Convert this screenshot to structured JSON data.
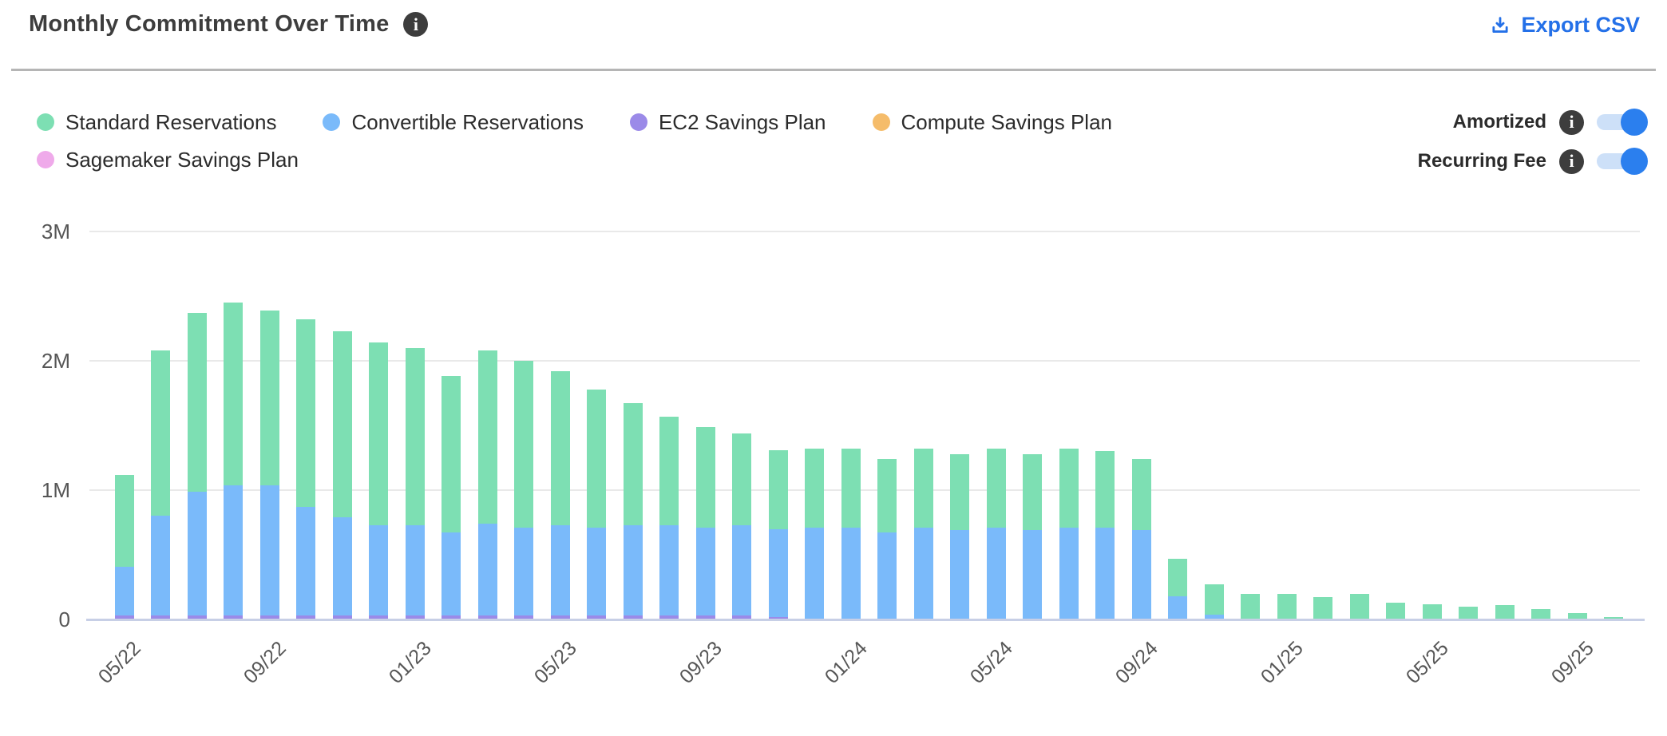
{
  "header": {
    "title": "Monthly Commitment Over Time",
    "export_label": "Export CSV"
  },
  "legend": {
    "items": [
      {
        "label": "Standard Reservations",
        "color": "#7ddfb3"
      },
      {
        "label": "Convertible Reservations",
        "color": "#7abafa"
      },
      {
        "label": "EC2 Savings Plan",
        "color": "#9b8ae8"
      },
      {
        "label": "Compute Savings Plan",
        "color": "#f5bc6a"
      },
      {
        "label": "Sagemaker Savings Plan",
        "color": "#efaaea"
      }
    ]
  },
  "toggles": [
    {
      "label": "Amortized",
      "state": "on"
    },
    {
      "label": "Recurring Fee",
      "state": "on"
    }
  ],
  "colors": {
    "accent_blue": "#2470e8",
    "toggle_knob": "#2b7fee",
    "toggle_track": "#cde0f8",
    "info_icon_bg": "#3d3d3d",
    "gridline": "#e9e9e9",
    "baseline": "#c7cfe6",
    "axis_text": "#565656"
  },
  "chart_data": {
    "type": "bar",
    "stacked": true,
    "title": "Monthly Commitment Over Time",
    "xlabel": "",
    "ylabel": "",
    "y_unit": "M",
    "ylim_millions": [
      0,
      3
    ],
    "yticks": [
      "0",
      "1M",
      "2M",
      "3M"
    ],
    "legend_position": "top-left",
    "grid": "horizontal",
    "x": [
      "05/22",
      "06/22",
      "07/22",
      "08/22",
      "09/22",
      "10/22",
      "11/22",
      "12/22",
      "01/23",
      "02/23",
      "03/23",
      "04/23",
      "05/23",
      "06/23",
      "07/23",
      "08/23",
      "09/23",
      "10/23",
      "11/23",
      "12/23",
      "01/24",
      "02/24",
      "03/24",
      "04/24",
      "05/24",
      "06/24",
      "07/24",
      "08/24",
      "09/24",
      "10/24",
      "11/24",
      "12/24",
      "01/25",
      "02/25",
      "03/25",
      "04/25",
      "05/25",
      "06/25",
      "07/25",
      "08/25",
      "09/25",
      "10/25"
    ],
    "x_tick_labels_shown": [
      "05/22",
      "09/22",
      "01/23",
      "05/23",
      "09/23",
      "01/24",
      "05/24",
      "09/24",
      "01/25",
      "05/25",
      "09/25"
    ],
    "x_tick_every": 4,
    "values_unit": "millions",
    "series": [
      {
        "name": "EC2 Savings Plan",
        "color": "#9b8ae8",
        "stack_order": 1,
        "values": [
          0.03,
          0.03,
          0.03,
          0.03,
          0.03,
          0.03,
          0.03,
          0.03,
          0.03,
          0.03,
          0.03,
          0.03,
          0.03,
          0.03,
          0.03,
          0.03,
          0.03,
          0.03,
          0.02,
          0,
          0,
          0,
          0,
          0,
          0,
          0,
          0,
          0,
          0,
          0,
          0,
          0,
          0,
          0,
          0,
          0,
          0,
          0,
          0,
          0,
          0,
          0
        ]
      },
      {
        "name": "Convertible Reservations",
        "color": "#7abafa",
        "stack_order": 2,
        "values": [
          0.38,
          0.77,
          0.96,
          1.01,
          1.01,
          0.84,
          0.76,
          0.7,
          0.7,
          0.64,
          0.71,
          0.68,
          0.7,
          0.68,
          0.7,
          0.7,
          0.68,
          0.7,
          0.68,
          0.71,
          0.71,
          0.67,
          0.71,
          0.69,
          0.71,
          0.69,
          0.71,
          0.71,
          0.69,
          0.18,
          0.04,
          0,
          0,
          0,
          0,
          0,
          0,
          0,
          0,
          0,
          0,
          0
        ]
      },
      {
        "name": "Standard Reservations",
        "color": "#7ddfb3",
        "stack_order": 3,
        "values": [
          0.71,
          1.28,
          1.38,
          1.41,
          1.35,
          1.45,
          1.44,
          1.41,
          1.37,
          1.21,
          1.34,
          1.29,
          1.19,
          1.07,
          0.94,
          0.84,
          0.78,
          0.71,
          0.61,
          0.61,
          0.61,
          0.57,
          0.61,
          0.59,
          0.61,
          0.59,
          0.61,
          0.59,
          0.55,
          0.29,
          0.23,
          0.2,
          0.2,
          0.17,
          0.2,
          0.13,
          0.12,
          0.1,
          0.11,
          0.08,
          0.05,
          0.02
        ]
      },
      {
        "name": "Compute Savings Plan",
        "color": "#f5bc6a",
        "stack_order": 4,
        "values": [
          0,
          0,
          0,
          0,
          0,
          0,
          0,
          0,
          0,
          0,
          0,
          0,
          0,
          0,
          0,
          0,
          0,
          0,
          0,
          0,
          0,
          0,
          0,
          0,
          0,
          0,
          0,
          0,
          0,
          0,
          0,
          0,
          0,
          0,
          0,
          0,
          0,
          0,
          0,
          0,
          0,
          0
        ]
      },
      {
        "name": "Sagemaker Savings Plan",
        "color": "#efaaea",
        "stack_order": 5,
        "values": [
          0,
          0,
          0,
          0,
          0,
          0,
          0,
          0,
          0,
          0,
          0,
          0,
          0,
          0,
          0,
          0,
          0,
          0,
          0,
          0,
          0,
          0,
          0,
          0,
          0,
          0,
          0,
          0,
          0,
          0,
          0,
          0,
          0,
          0,
          0,
          0,
          0,
          0,
          0,
          0,
          0,
          0
        ]
      }
    ]
  }
}
